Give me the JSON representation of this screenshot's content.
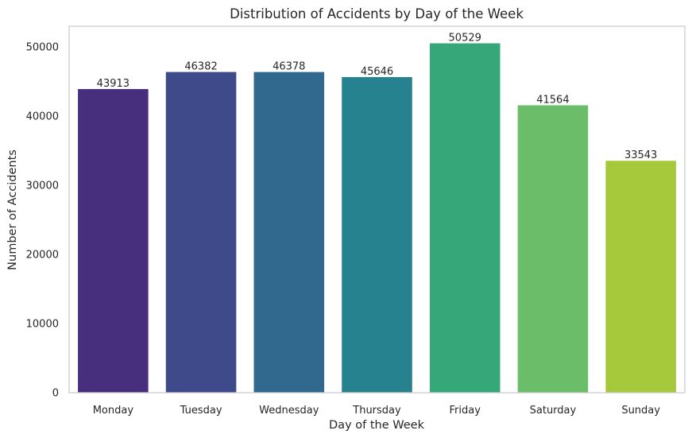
{
  "chart_data": {
    "type": "bar",
    "title": "Distribution of Accidents by Day of the Week",
    "xlabel": "Day of the Week",
    "ylabel": "Number of Accidents",
    "categories": [
      "Monday",
      "Tuesday",
      "Wednesday",
      "Thursday",
      "Friday",
      "Saturday",
      "Sunday"
    ],
    "values": [
      43913,
      46382,
      46378,
      45646,
      50529,
      41564,
      33543
    ],
    "value_labels": [
      "43913",
      "46382",
      "46378",
      "45646",
      "50529",
      "41564",
      "33543"
    ],
    "ylim": [
      0,
      53000
    ],
    "yticks": [
      0,
      10000,
      20000,
      30000,
      40000,
      50000
    ],
    "ytick_labels": [
      "0",
      "10000",
      "20000",
      "30000",
      "40000",
      "50000"
    ],
    "grid": false,
    "colors": [
      "#472f7d",
      "#3e4a89",
      "#31688e",
      "#26828e",
      "#35a779",
      "#6bbd6a",
      "#a5c93a"
    ],
    "frame_color": "#cccccc"
  }
}
